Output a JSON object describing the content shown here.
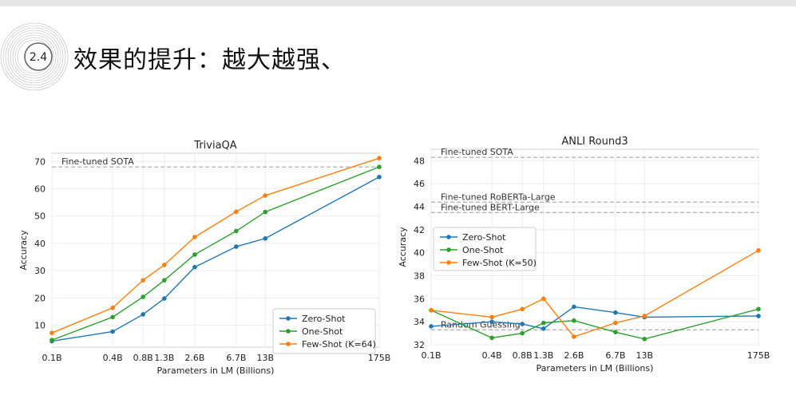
{
  "slide": {
    "section_number": "2.4",
    "title": "效果的提升：越大越强、"
  },
  "chart_data": [
    {
      "type": "line",
      "title": "TriviaQA",
      "xlabel": "Parameters in LM (Billions)",
      "ylabel": "Accuracy",
      "xscale": "log",
      "x": [
        0.1,
        0.4,
        0.8,
        1.3,
        2.6,
        6.7,
        13,
        175
      ],
      "xtick_labels": [
        "0.1B",
        "0.4B",
        "0.8B",
        "1.3B",
        "2.6B",
        "6.7B",
        "13B",
        "175B"
      ],
      "yticks": [
        10,
        20,
        30,
        40,
        50,
        60,
        70
      ],
      "ylim": [
        2,
        73
      ],
      "grid": true,
      "legend_position": "lower-right",
      "reference_lines": [
        {
          "label": "Fine-tuned SOTA",
          "y": 68
        }
      ],
      "series": [
        {
          "name": "Zero-Shot",
          "color": "#1f77b4",
          "values": [
            4.2,
            7.7,
            14.0,
            19.8,
            31.3,
            38.8,
            41.8,
            64.3
          ]
        },
        {
          "name": "One-Shot",
          "color": "#2ca02c",
          "values": [
            4.6,
            13.0,
            20.4,
            26.5,
            35.9,
            44.5,
            51.5,
            68.0
          ]
        },
        {
          "name": "Few-Shot (K=64)",
          "color": "#ff7f0e",
          "values": [
            7.2,
            16.4,
            26.5,
            32.1,
            42.3,
            51.6,
            57.5,
            71.2
          ]
        }
      ]
    },
    {
      "type": "line",
      "title": "ANLI Round3",
      "xlabel": "Parameters in LM (Billions)",
      "ylabel": "Accuracy",
      "xscale": "log",
      "x": [
        0.1,
        0.4,
        0.8,
        1.3,
        2.6,
        6.7,
        13,
        175
      ],
      "xtick_labels": [
        "0.1B",
        "0.4B",
        "0.8B",
        "1.3B",
        "2.6B",
        "6.7B",
        "13B",
        "175B"
      ],
      "yticks": [
        32,
        34,
        36,
        38,
        40,
        42,
        44,
        46,
        48
      ],
      "ylim": [
        32,
        49
      ],
      "grid": true,
      "legend_position": "center-left",
      "reference_lines": [
        {
          "label": "Fine-tuned SOTA",
          "y": 48.3
        },
        {
          "label": "Fine-tuned RoBERTa-Large",
          "y": 44.4
        },
        {
          "label": "Fine-tuned BERT-Large",
          "y": 43.5
        },
        {
          "label": "Random Guessing",
          "y": 33.3
        }
      ],
      "series": [
        {
          "name": "Zero-Shot",
          "color": "#1f77b4",
          "values": [
            33.6,
            34.0,
            33.8,
            33.4,
            35.3,
            34.8,
            34.4,
            34.5
          ]
        },
        {
          "name": "One-Shot",
          "color": "#2ca02c",
          "values": [
            35.0,
            32.6,
            33.0,
            33.9,
            34.1,
            33.1,
            32.5,
            35.1
          ]
        },
        {
          "name": "Few-Shot (K=50)",
          "color": "#ff7f0e",
          "values": [
            35.0,
            34.4,
            35.1,
            36.0,
            32.7,
            33.9,
            34.5,
            40.2
          ]
        }
      ]
    }
  ]
}
